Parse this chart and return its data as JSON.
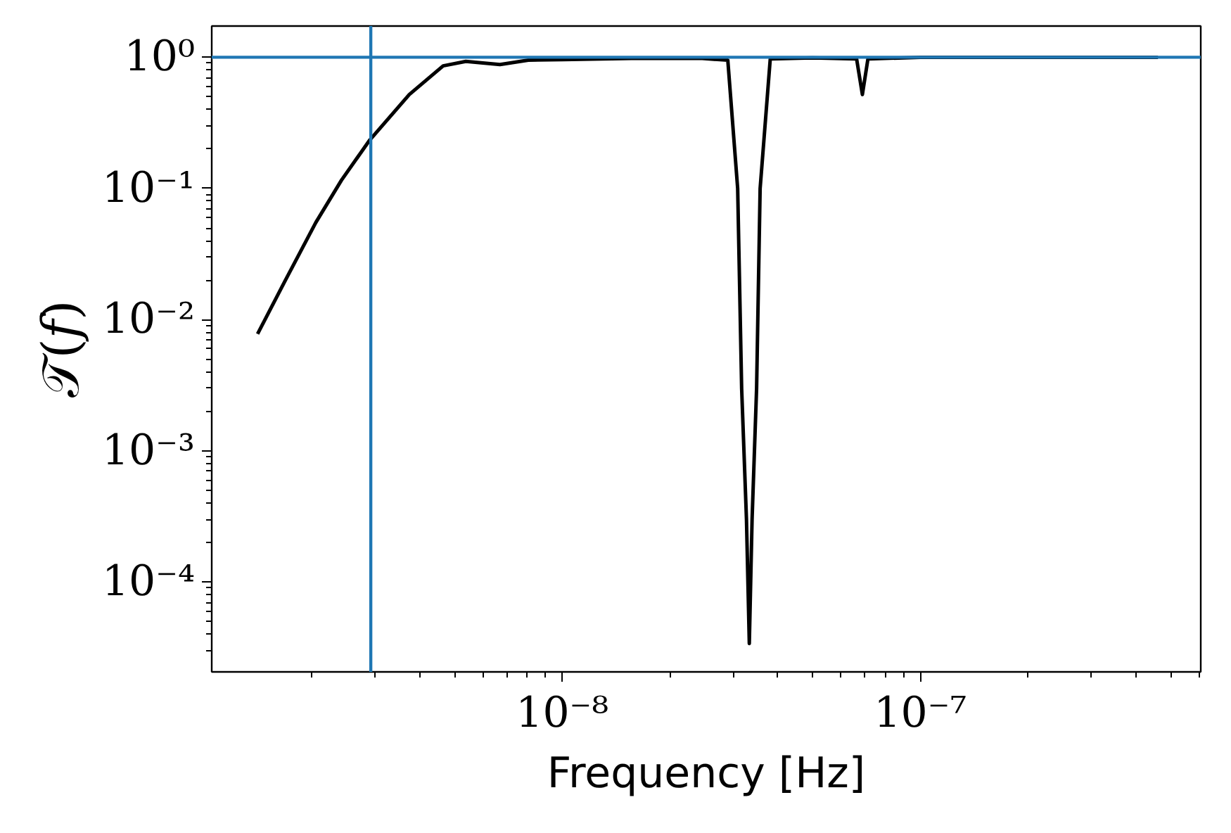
{
  "chart_data": {
    "type": "line",
    "xlabel": "Frequency [Hz]",
    "ylabel": "𝒯(𝑓)",
    "log": "xy",
    "grid": false,
    "marker": "none",
    "line_style": "solid",
    "xlim": [
      1.05e-09,
      6.07e-07
    ],
    "ylim": [
      2.07e-05,
      1.73
    ],
    "xticks": [
      {
        "value": 1e-08,
        "label": "10⁻⁸"
      },
      {
        "value": 1e-07,
        "label": "10⁻⁷"
      }
    ],
    "yticks": [
      {
        "value": 1,
        "label": "10⁰"
      },
      {
        "value": 0.1,
        "label": "10⁻¹"
      },
      {
        "value": 0.01,
        "label": "10⁻²"
      },
      {
        "value": 0.001,
        "label": "10⁻³"
      },
      {
        "value": 0.0001,
        "label": "10⁻⁴"
      }
    ],
    "series": [
      {
        "color": "#000000",
        "x": [
          1.41e-09,
          1.68e-09,
          2.05e-09,
          2.42e-09,
          2.9e-09,
          3.74e-09,
          4.65e-09,
          5.38e-09,
          6.7e-09,
          8.04e-09,
          1e-08,
          1.56e-08,
          2.46e-08,
          2.9e-08,
          3.09e-08,
          3.17e-08,
          3.27e-08,
          3.33e-08,
          3.39e-08,
          3.49e-08,
          3.57e-08,
          3.81e-08,
          5e-08,
          6.64e-08,
          6.89e-08,
          7.14e-08,
          1e-07,
          2e-07,
          4.61e-07
        ],
        "values": [
          0.0078,
          0.0196,
          0.055,
          0.116,
          0.234,
          0.52,
          0.86,
          0.93,
          0.88,
          0.95,
          0.96,
          0.98,
          0.98,
          0.95,
          0.1,
          0.003,
          0.0003,
          3.4e-05,
          0.0003,
          0.003,
          0.1,
          0.97,
          0.99,
          0.97,
          0.52,
          0.97,
          1,
          1,
          1
        ]
      }
    ],
    "ref_lines": [
      {
        "axis": "x",
        "value": 2.92e-09,
        "color": "#1f77b4"
      },
      {
        "axis": "y",
        "value": 1,
        "color": "#1f77b4"
      }
    ]
  }
}
